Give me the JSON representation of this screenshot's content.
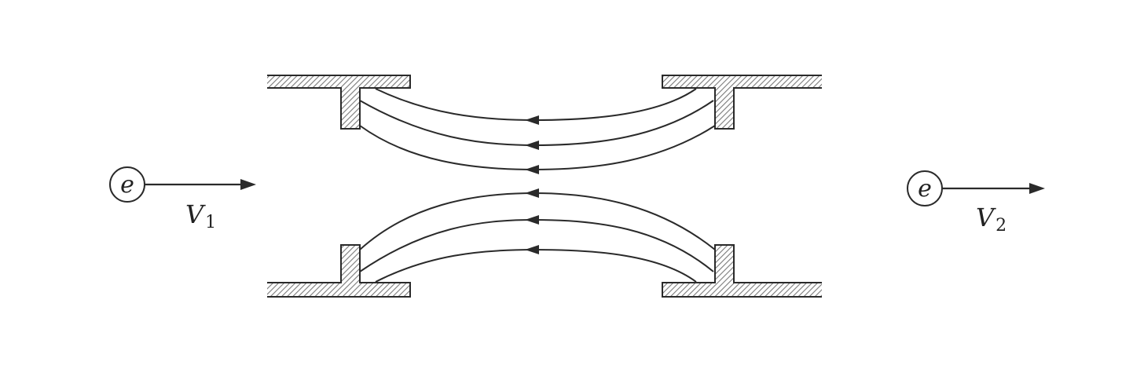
{
  "diagram": {
    "electron_in": {
      "symbol": "e",
      "velocity_label": "V",
      "velocity_subscript": "1"
    },
    "electron_out": {
      "symbol": "e",
      "velocity_label": "V",
      "velocity_subscript": "2"
    },
    "colors": {
      "stroke": "#2a2a2a",
      "hatch_fill": "#9a9a9a",
      "background": "#ffffff"
    },
    "field_lines": {
      "count": 6,
      "direction": "right-to-left"
    }
  }
}
